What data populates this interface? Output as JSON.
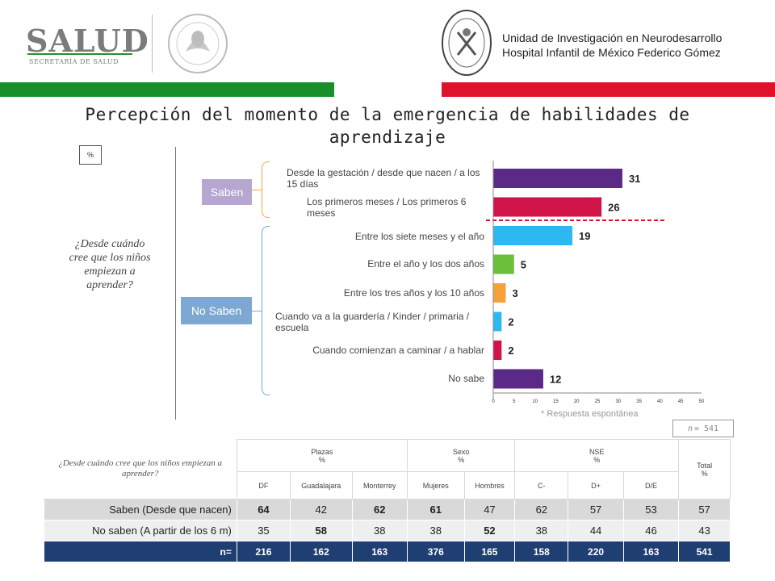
{
  "header": {
    "logo_word": "SALUD",
    "logo_sub": "SECRETARÍA DE SALUD",
    "institution_line1": "Unidad de Investigación en Neurodesarrollo",
    "institution_line2": "Hospital Infantil de México Federico Gómez",
    "colors": {
      "green": "#178f2a",
      "red": "#e0112b"
    }
  },
  "title": "Percepción del momento de la emergencia de habilidades de aprendizaje",
  "percent_box": "%",
  "question": "¿Desde cuándo cree que los niños empiezan a aprender?",
  "groups": {
    "saben": "Saben",
    "no_saben": "No Saben"
  },
  "chart_data": {
    "type": "bar",
    "orientation": "horizontal",
    "categories": [
      "Desde la gestación / desde que nacen / a los 15 días",
      "Los primeros meses / Los primeros 6 meses",
      "Entre los siete meses y el año",
      "Entre el año y los dos años",
      "Entre los tres años y los 10 años",
      "Cuando va a la guardería / Kinder / primaria / escuela",
      "Cuando comienzan a caminar / a hablar",
      "No sabe"
    ],
    "values": [
      31,
      26,
      19,
      5,
      3,
      2,
      2,
      12
    ],
    "value_labels": [
      "31",
      "26",
      "19",
      "5",
      "3",
      "2",
      "2",
      "12"
    ],
    "colors": [
      "#5b2a86",
      "#d0144a",
      "#2db9ef",
      "#6bbf3a",
      "#f7a13b",
      "#2db9ef",
      "#d0144a",
      "#5b2a86"
    ],
    "xlim": [
      0,
      50
    ],
    "xticks": [
      "0",
      "5",
      "10",
      "15",
      "20",
      "25",
      "30",
      "35",
      "40",
      "45",
      "50"
    ]
  },
  "note": "* Respuesta espontánea",
  "n_box": {
    "n": "n",
    "rest": "= 541"
  },
  "table": {
    "question": "¿Desde cuándo cree que los niños empiezan a aprender?",
    "groups": [
      {
        "label": "Plazas",
        "unit": "%"
      },
      {
        "label": "Sexo",
        "unit": "%"
      },
      {
        "label": "NSE",
        "unit": "%"
      }
    ],
    "total": {
      "label": "Total",
      "unit": "%"
    },
    "columns": [
      "DF",
      "Guadalajara",
      "Monterrey",
      "Mujeres",
      "Hombres",
      "C-",
      "D+",
      "D/E"
    ],
    "rows": [
      {
        "label": "Saben (Desde que nacen)",
        "values": [
          "64",
          "42",
          "62",
          "61",
          "47",
          "62",
          "57",
          "53",
          "57"
        ]
      },
      {
        "label": "No saben (A partir de los 6 m)",
        "values": [
          "35",
          "58",
          "38",
          "38",
          "52",
          "38",
          "44",
          "46",
          "43"
        ]
      }
    ],
    "n_row": {
      "label": "n=",
      "values": [
        "216",
        "162",
        "163",
        "376",
        "165",
        "158",
        "220",
        "163",
        "541"
      ]
    }
  }
}
